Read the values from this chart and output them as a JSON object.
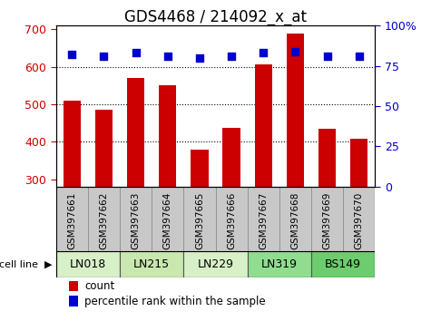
{
  "title": "GDS4468 / 214092_x_at",
  "samples": [
    "GSM397661",
    "GSM397662",
    "GSM397663",
    "GSM397664",
    "GSM397665",
    "GSM397666",
    "GSM397667",
    "GSM397668",
    "GSM397669",
    "GSM397670"
  ],
  "counts": [
    510,
    485,
    570,
    552,
    380,
    437,
    607,
    688,
    435,
    407
  ],
  "percentile_ranks": [
    82,
    81,
    83,
    81,
    80,
    81,
    83,
    84,
    81,
    81
  ],
  "cell_lines": [
    {
      "name": "LN018",
      "cols": [
        0,
        1
      ],
      "color": "#d8f0c8"
    },
    {
      "name": "LN215",
      "cols": [
        2,
        3
      ],
      "color": "#c8e8b0"
    },
    {
      "name": "LN229",
      "cols": [
        4,
        5
      ],
      "color": "#d8f0c8"
    },
    {
      "name": "LN319",
      "cols": [
        6,
        7
      ],
      "color": "#90dd90"
    },
    {
      "name": "BS149",
      "cols": [
        8,
        9
      ],
      "color": "#6dcc6d"
    }
  ],
  "ylim_left": [
    280,
    710
  ],
  "ylim_right": [
    0,
    100
  ],
  "yticks_left": [
    300,
    400,
    500,
    600,
    700
  ],
  "yticks_right": [
    0,
    25,
    50,
    75,
    100
  ],
  "bar_color": "#cc0000",
  "dot_color": "#0000cc",
  "bar_bottom": 280,
  "grid_color": "#000000",
  "tick_label_color_left": "#cc0000",
  "tick_label_color_right": "#0000cc",
  "title_fontsize": 12,
  "tick_fontsize": 9,
  "label_fontsize": 8.5,
  "sample_label_fontsize": 7.5,
  "cell_line_fontsize": 9,
  "sample_bg_color": "#c8c8c8"
}
